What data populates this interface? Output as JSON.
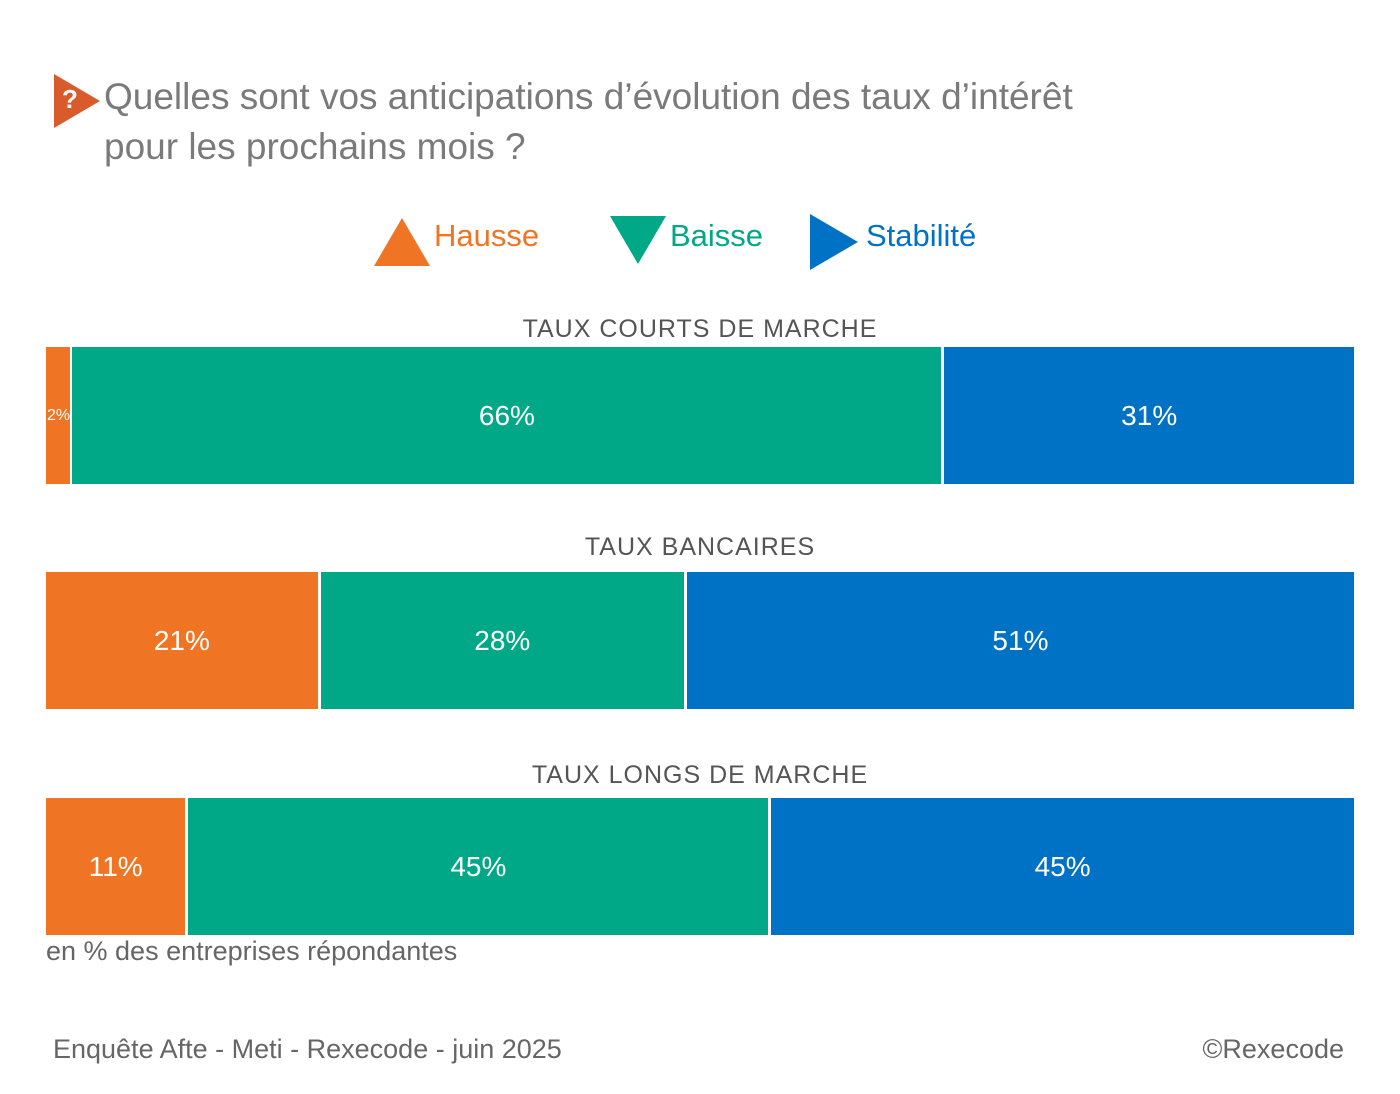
{
  "title_icon": "question-mark-icon",
  "title_mark": "?",
  "title_lines": [
    "Quelles sont vos anticipations d’évolution des taux d’intérêt",
    "pour les prochains mois ?"
  ],
  "colors": {
    "hausse": "#ef7524",
    "baisse": "#00a887",
    "stabilite": "#0072c6",
    "title": "#7a7a7a",
    "icon": "#d95b2b"
  },
  "legend": [
    {
      "label": "Hausse",
      "icon": "triangle-up-icon"
    },
    {
      "label": "Baisse",
      "icon": "triangle-down-icon"
    },
    {
      "label": "Stabilité",
      "icon": "triangle-right-icon"
    }
  ],
  "chart_data": {
    "type": "bar",
    "orientation": "horizontal-stacked-100",
    "title": "Quelles sont vos anticipations d’évolution des taux d’intérêt pour les prochains mois ?",
    "series": [
      {
        "name": "Hausse",
        "values": [
          2,
          21,
          11
        ]
      },
      {
        "name": "Baisse",
        "values": [
          66,
          28,
          45
        ]
      },
      {
        "name": "Stabilité",
        "values": [
          31,
          51,
          45
        ]
      }
    ],
    "categories": [
      "TAUX COURTS DE MARCHE",
      "TAUX BANCAIRES",
      "TAUX LONGS DE MARCHE"
    ],
    "data_labels": [
      [
        "2%",
        "66%",
        "31%"
      ],
      [
        "21%",
        "28%",
        "51%"
      ],
      [
        "11%",
        "45%",
        "45%"
      ]
    ],
    "unit_note": "en % des entreprises répondantes"
  },
  "footer": {
    "source": "Enquête Afte - Meti - Rexecode  - juin 2025",
    "copyright": "©Rexecode"
  }
}
